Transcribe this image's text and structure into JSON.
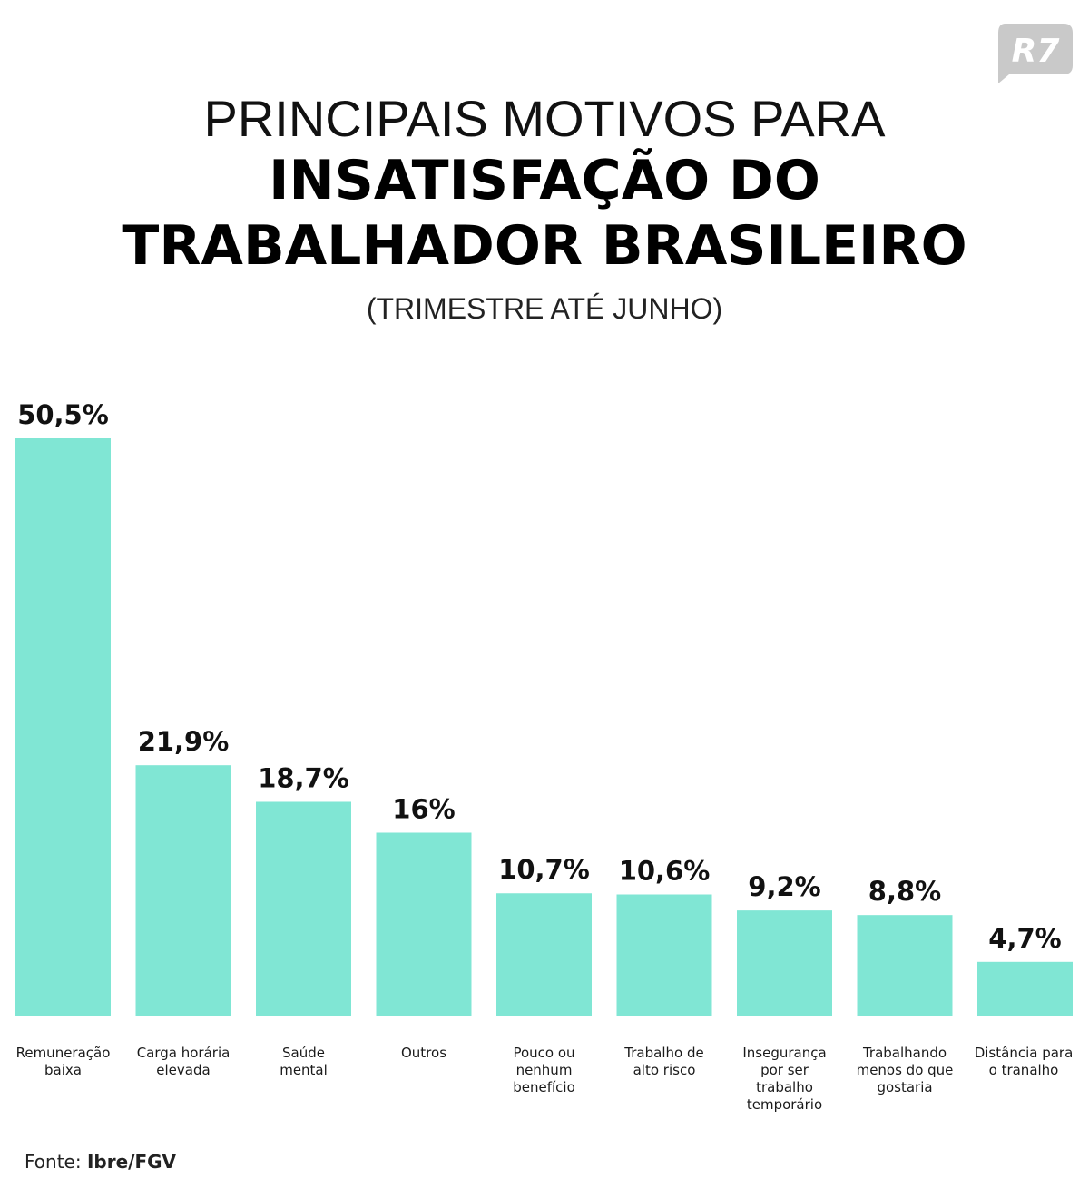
{
  "brand": {
    "logo_text": "R7",
    "logo_color": "#c9c9c9"
  },
  "header": {
    "line1": "PRINCIPAIS MOTIVOS PARA",
    "line2": "INSATISFAÇÃO DO",
    "line3": "TRABALHADOR BRASILEIRO",
    "subtitle": "(TRIMESTRE ATÉ JUNHO)"
  },
  "source": {
    "prefix": "Fonte:",
    "name": "Ibre/FGV"
  },
  "colors": {
    "bar": "#80e6d4",
    "text": "#111111"
  },
  "chart_data": {
    "type": "bar",
    "title": "PRINCIPAIS MOTIVOS PARA INSATISFAÇÃO DO TRABALHADOR BRASILEIRO",
    "subtitle": "(TRIMESTRE ATÉ JUNHO)",
    "unit": "%",
    "categories": [
      [
        "Remuneração",
        "baixa"
      ],
      [
        "Carga horária",
        "elevada"
      ],
      [
        "Saúde",
        "mental"
      ],
      [
        "Outros"
      ],
      [
        "Pouco ou",
        "nenhum",
        "benefício"
      ],
      [
        "Trabalho de",
        "alto risco"
      ],
      [
        "Insegurança",
        "por ser",
        "trabalho",
        "temporário"
      ],
      [
        "Trabalhando",
        "menos do que",
        "gostaria"
      ],
      [
        "Distância para",
        "o tranalho"
      ]
    ],
    "values": [
      50.5,
      21.9,
      18.7,
      16,
      10.7,
      10.6,
      9.2,
      8.8,
      4.7
    ],
    "value_labels": [
      "50,5%",
      "21,9%",
      "18,7%",
      "16%",
      "10,7%",
      "10,6%",
      "9,2%",
      "8,8%",
      "4,7%"
    ],
    "ylim": [
      0,
      50.5
    ],
    "grid": false,
    "legend": "none"
  }
}
